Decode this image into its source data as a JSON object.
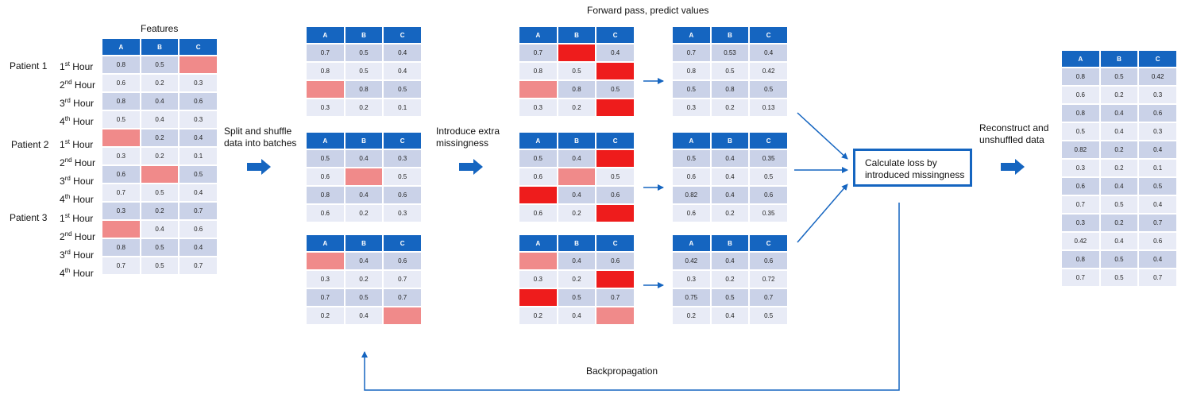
{
  "labels": {
    "features": "Features",
    "split": "Split and shuffle data into batches",
    "extra": "Introduce extra missingness",
    "forward": "Forward pass, predict values",
    "loss": "Calculate loss by introduced missingness",
    "reconstruct": "Reconstruct and unshuffled data",
    "backprop": "Backpropagation"
  },
  "patients": [
    "Patient 1",
    "Patient 2",
    "Patient 3"
  ],
  "hours": [
    "1st Hour",
    "2nd Hour",
    "3rd Hour",
    "4th Hour"
  ],
  "tables": {
    "input": {
      "headers": [
        "A",
        "B",
        "C"
      ],
      "rows": [
        [
          "0.8",
          "0.5",
          ""
        ],
        [
          "0.6",
          "0.2",
          "0.3"
        ],
        [
          "0.8",
          "0.4",
          "0.6"
        ],
        [
          "0.5",
          "0.4",
          "0.3"
        ],
        [
          "",
          "0.2",
          "0.4"
        ],
        [
          "0.3",
          "0.2",
          "0.1"
        ],
        [
          "0.6",
          "",
          "0.5"
        ],
        [
          "0.7",
          "0.5",
          "0.4"
        ],
        [
          "0.3",
          "0.2",
          "0.7"
        ],
        [
          "",
          "0.4",
          "0.6"
        ],
        [
          "0.8",
          "0.5",
          "0.4"
        ],
        [
          "0.7",
          "0.5",
          "0.7"
        ]
      ]
    },
    "batch1": {
      "headers": [
        "A",
        "B",
        "C"
      ],
      "rows": [
        [
          "0.7",
          "0.5",
          "0.4"
        ],
        [
          "0.8",
          "0.5",
          "0.4"
        ],
        [
          "",
          "0.8",
          "0.5"
        ],
        [
          "0.3",
          "0.2",
          "0.1"
        ]
      ]
    },
    "batch2": {
      "headers": [
        "A",
        "B",
        "C"
      ],
      "rows": [
        [
          "0.5",
          "0.4",
          "0.3"
        ],
        [
          "0.6",
          "",
          "0.5"
        ],
        [
          "0.8",
          "0.4",
          "0.6"
        ],
        [
          "0.6",
          "0.2",
          "0.3"
        ]
      ]
    },
    "batch3": {
      "headers": [
        "A",
        "B",
        "C"
      ],
      "rows": [
        [
          "",
          "0.4",
          "0.6"
        ],
        [
          "0.3",
          "0.2",
          "0.7"
        ],
        [
          "0.7",
          "0.5",
          "0.7"
        ],
        [
          "0.2",
          "0.4",
          ""
        ]
      ]
    },
    "masked1": {
      "headers": [
        "A",
        "B",
        "C"
      ],
      "rows": [
        [
          "0.7",
          "",
          "0.4"
        ],
        [
          "0.8",
          "0.5",
          ""
        ],
        [
          "",
          "0.8",
          "0.5"
        ],
        [
          "0.3",
          "0.2",
          ""
        ]
      ]
    },
    "masked2": {
      "headers": [
        "A",
        "B",
        "C"
      ],
      "rows": [
        [
          "0.5",
          "0.4",
          ""
        ],
        [
          "0.6",
          "",
          "0.5"
        ],
        [
          "",
          "0.4",
          "0.6"
        ],
        [
          "0.6",
          "0.2",
          ""
        ]
      ]
    },
    "masked3": {
      "headers": [
        "A",
        "B",
        "C"
      ],
      "rows": [
        [
          "",
          "0.4",
          "0.6"
        ],
        [
          "0.3",
          "0.2",
          ""
        ],
        [
          "",
          "0.5",
          "0.7"
        ],
        [
          "0.2",
          "0.4",
          ""
        ]
      ]
    },
    "pred1": {
      "headers": [
        "A",
        "B",
        "C"
      ],
      "rows": [
        [
          "0.7",
          "0.53",
          "0.4"
        ],
        [
          "0.8",
          "0.5",
          "0.42"
        ],
        [
          "0.5",
          "0.8",
          "0.5"
        ],
        [
          "0.3",
          "0.2",
          "0.13"
        ]
      ]
    },
    "pred2": {
      "headers": [
        "A",
        "B",
        "C"
      ],
      "rows": [
        [
          "0.5",
          "0.4",
          "0.35"
        ],
        [
          "0.6",
          "0.4",
          "0.5"
        ],
        [
          "0.82",
          "0.4",
          "0.6"
        ],
        [
          "0.6",
          "0.2",
          "0.35"
        ]
      ]
    },
    "pred3": {
      "headers": [
        "A",
        "B",
        "C"
      ],
      "rows": [
        [
          "0.42",
          "0.4",
          "0.6"
        ],
        [
          "0.3",
          "0.2",
          "0.72"
        ],
        [
          "0.75",
          "0.5",
          "0.7"
        ],
        [
          "0.2",
          "0.4",
          "0.5"
        ]
      ]
    },
    "output": {
      "headers": [
        "A",
        "B",
        "C"
      ],
      "rows": [
        [
          "0.8",
          "0.5",
          "0.42"
        ],
        [
          "0.6",
          "0.2",
          "0.3"
        ],
        [
          "0.8",
          "0.4",
          "0.6"
        ],
        [
          "0.5",
          "0.4",
          "0.3"
        ],
        [
          "0.82",
          "0.2",
          "0.4"
        ],
        [
          "0.3",
          "0.2",
          "0.1"
        ],
        [
          "0.6",
          "0.4",
          "0.5"
        ],
        [
          "0.7",
          "0.5",
          "0.4"
        ],
        [
          "0.3",
          "0.2",
          "0.7"
        ],
        [
          "0.42",
          "0.4",
          "0.6"
        ],
        [
          "0.8",
          "0.5",
          "0.4"
        ],
        [
          "0.7",
          "0.5",
          "0.7"
        ]
      ]
    }
  },
  "cell_states": {
    "input": {
      "0-2": "missing",
      "4-0": "missing",
      "6-1": "missing",
      "9-0": "missing"
    },
    "batch1": {
      "2-0": "missing"
    },
    "batch2": {
      "1-1": "missing"
    },
    "batch3": {
      "0-0": "missing",
      "3-2": "missing"
    },
    "masked1": {
      "0-1": "introduced",
      "1-2": "introduced",
      "2-0": "missing",
      "3-2": "introduced"
    },
    "masked2": {
      "0-2": "introduced",
      "1-1": "missing",
      "2-0": "introduced",
      "3-2": "introduced"
    },
    "masked3": {
      "0-0": "missing",
      "1-2": "introduced",
      "2-0": "introduced",
      "3-2": "missing"
    }
  },
  "colors": {
    "header": "#1565c0",
    "row_light": "#e8ebf6",
    "row_dark": "#cad2e8",
    "missing": "#f08a8a",
    "introduced": "#ee1c1c",
    "arrow": "#1565c0"
  }
}
